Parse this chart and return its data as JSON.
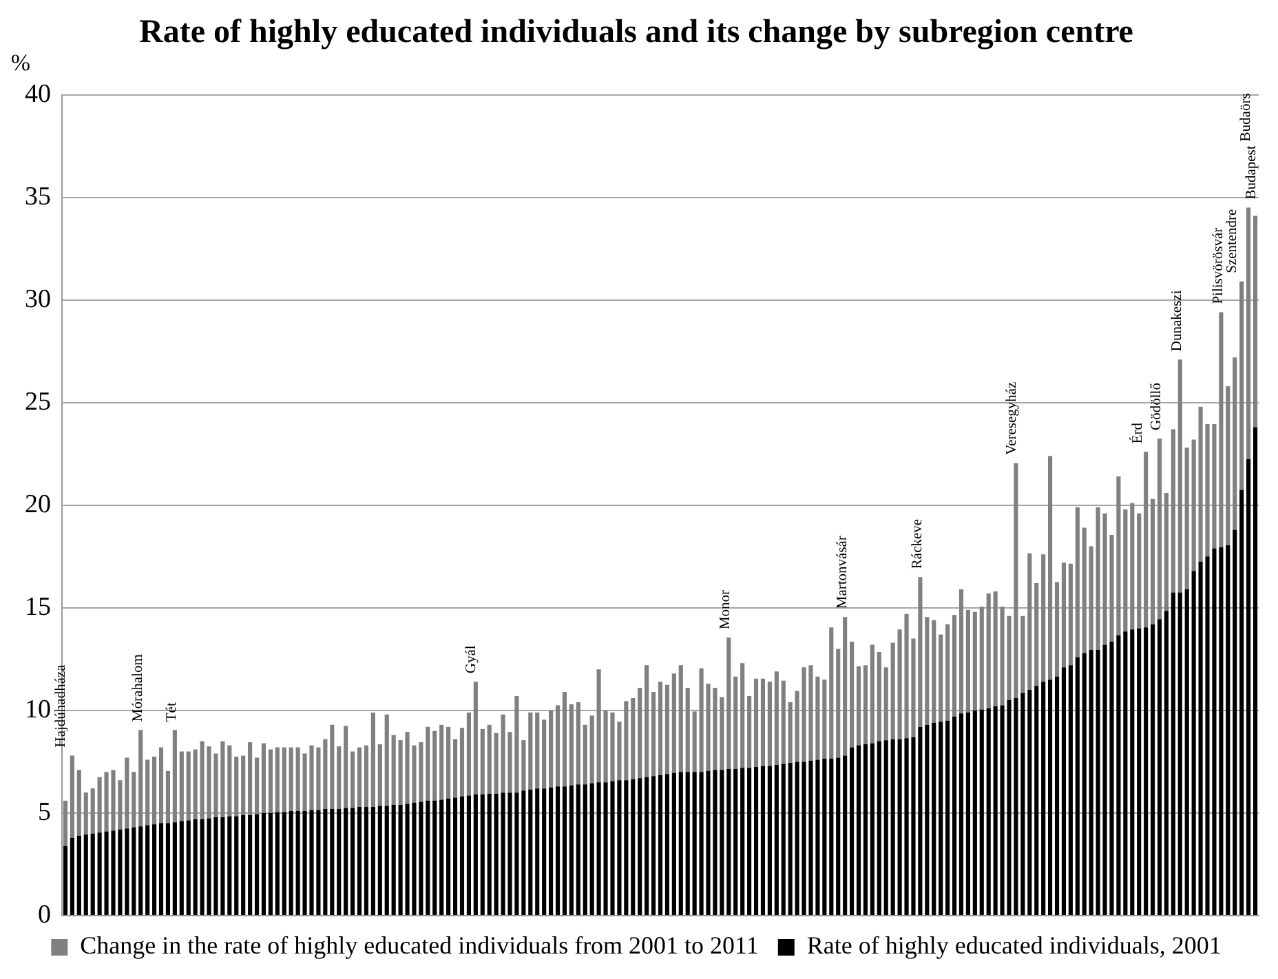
{
  "chart_data": {
    "type": "bar",
    "title": "Rate of highly educated individuals and its change by subregion centre",
    "ylabel": "%",
    "categories": [
      "Hajdúhadháza",
      null,
      null,
      null,
      null,
      null,
      null,
      null,
      null,
      null,
      null,
      "Mórahalom",
      null,
      null,
      null,
      null,
      "Tét",
      null,
      null,
      null,
      null,
      null,
      null,
      null,
      null,
      null,
      null,
      null,
      null,
      null,
      null,
      null,
      null,
      null,
      null,
      null,
      null,
      null,
      null,
      null,
      null,
      null,
      null,
      null,
      null,
      null,
      null,
      null,
      null,
      null,
      null,
      null,
      null,
      null,
      null,
      null,
      null,
      null,
      null,
      null,
      "Gyál",
      null,
      null,
      null,
      null,
      null,
      null,
      null,
      null,
      null,
      null,
      null,
      null,
      null,
      null,
      null,
      null,
      null,
      null,
      null,
      null,
      null,
      null,
      null,
      null,
      null,
      null,
      null,
      null,
      null,
      null,
      null,
      null,
      null,
      null,
      null,
      null,
      "Monor",
      null,
      null,
      null,
      null,
      null,
      null,
      null,
      null,
      null,
      null,
      null,
      null,
      null,
      null,
      null,
      null,
      "Martonvásár",
      null,
      null,
      null,
      null,
      null,
      null,
      null,
      null,
      null,
      null,
      "Ráckeve",
      null,
      null,
      null,
      null,
      null,
      null,
      null,
      null,
      null,
      null,
      null,
      null,
      null,
      "Veresegyház",
      null,
      null,
      null,
      null,
      null,
      null,
      null,
      null,
      null,
      null,
      null,
      null,
      null,
      null,
      null,
      null,
      null,
      "Érd",
      null,
      null,
      "Gödöllő",
      null,
      null,
      "Dunakeszi",
      null,
      null,
      null,
      null,
      null,
      "Pilisvörösvár",
      null,
      "Szentendre",
      null,
      "Budaörs",
      "Budapest"
    ],
    "series": [
      {
        "name": "Rate of highly educated individuals, 2001",
        "color": "#000000",
        "values": [
          3.4,
          3.8,
          3.9,
          3.95,
          4.0,
          4.05,
          4.1,
          4.15,
          4.2,
          4.25,
          4.3,
          4.35,
          4.4,
          4.45,
          4.5,
          4.5,
          4.55,
          4.6,
          4.65,
          4.7,
          4.7,
          4.75,
          4.8,
          4.8,
          4.85,
          4.85,
          4.9,
          4.9,
          4.95,
          5.0,
          5.0,
          5.05,
          5.05,
          5.1,
          5.1,
          5.1,
          5.15,
          5.15,
          5.2,
          5.2,
          5.2,
          5.25,
          5.25,
          5.3,
          5.3,
          5.3,
          5.35,
          5.35,
          5.4,
          5.4,
          5.45,
          5.5,
          5.55,
          5.6,
          5.6,
          5.65,
          5.7,
          5.75,
          5.8,
          5.85,
          5.9,
          5.9,
          5.95,
          5.95,
          6.0,
          6.0,
          6.0,
          6.1,
          6.15,
          6.2,
          6.2,
          6.25,
          6.3,
          6.3,
          6.35,
          6.4,
          6.4,
          6.45,
          6.5,
          6.5,
          6.55,
          6.6,
          6.6,
          6.65,
          6.7,
          6.75,
          6.8,
          6.85,
          6.9,
          6.95,
          7.0,
          7.0,
          7.0,
          7.0,
          7.05,
          7.1,
          7.1,
          7.15,
          7.15,
          7.2,
          7.2,
          7.25,
          7.3,
          7.3,
          7.35,
          7.4,
          7.45,
          7.5,
          7.5,
          7.55,
          7.6,
          7.65,
          7.65,
          7.7,
          7.8,
          8.2,
          8.3,
          8.35,
          8.4,
          8.5,
          8.55,
          8.6,
          8.6,
          8.65,
          8.7,
          9.2,
          9.3,
          9.4,
          9.45,
          9.5,
          9.7,
          9.85,
          9.9,
          10.0,
          10.05,
          10.1,
          10.2,
          10.25,
          10.5,
          10.6,
          10.85,
          11.0,
          11.2,
          11.4,
          11.5,
          11.65,
          12.1,
          12.2,
          12.6,
          12.8,
          12.95,
          12.95,
          13.2,
          13.35,
          13.65,
          13.85,
          13.95,
          14.0,
          14.05,
          14.2,
          14.45,
          14.85,
          15.75,
          15.75,
          15.9,
          16.8,
          17.25,
          17.5,
          17.9,
          17.95,
          18.05,
          18.8,
          20.75,
          22.25,
          23.8
        ]
      },
      {
        "name": "Change in the rate of highly educated individuals from 2001 to 2011",
        "color": "#808080",
        "values": [
          2.2,
          4.0,
          3.2,
          2.05,
          2.2,
          2.7,
          2.9,
          2.95,
          2.4,
          3.45,
          2.7,
          4.7,
          3.2,
          3.3,
          3.7,
          2.55,
          4.5,
          3.4,
          3.35,
          3.4,
          3.8,
          3.5,
          3.1,
          3.7,
          3.45,
          2.9,
          2.9,
          3.55,
          2.75,
          3.4,
          3.1,
          3.15,
          3.15,
          3.1,
          3.1,
          2.8,
          3.15,
          3.05,
          3.4,
          4.1,
          3.05,
          4.0,
          2.75,
          2.9,
          3.0,
          4.6,
          3.0,
          4.45,
          3.4,
          3.15,
          3.5,
          2.8,
          2.9,
          3.6,
          3.4,
          3.65,
          3.5,
          2.85,
          3.35,
          4.05,
          5.5,
          3.2,
          3.35,
          2.95,
          3.8,
          2.95,
          4.7,
          2.45,
          3.75,
          3.7,
          3.35,
          3.75,
          3.95,
          4.6,
          3.95,
          4.0,
          2.9,
          3.3,
          5.5,
          3.5,
          3.35,
          2.85,
          3.85,
          3.95,
          4.4,
          5.45,
          4.1,
          4.55,
          4.35,
          4.85,
          5.2,
          4.1,
          2.95,
          5.05,
          4.25,
          4.0,
          3.55,
          6.4,
          4.5,
          5.1,
          3.5,
          4.3,
          4.25,
          4.1,
          4.55,
          4.05,
          2.95,
          3.45,
          4.6,
          4.65,
          4.05,
          3.85,
          6.4,
          5.3,
          6.75,
          5.15,
          3.85,
          3.85,
          4.8,
          4.35,
          3.55,
          4.7,
          5.35,
          6.05,
          4.8,
          7.3,
          5.25,
          5.0,
          4.25,
          4.7,
          4.95,
          6.05,
          5.0,
          4.8,
          5.0,
          5.6,
          5.6,
          4.8,
          4.1,
          11.45,
          3.75,
          6.65,
          5.0,
          6.2,
          10.9,
          4.6,
          5.1,
          4.95,
          7.3,
          6.1,
          5.05,
          6.95,
          6.4,
          5.2,
          7.75,
          5.95,
          6.15,
          5.6,
          8.55,
          6.1,
          8.8,
          5.75,
          7.95,
          11.35,
          6.9,
          6.4,
          7.55,
          6.45,
          6.05,
          11.45,
          7.75,
          8.4,
          10.15,
          12.25,
          10.3
        ]
      }
    ],
    "stacked": true,
    "ylim": [
      0,
      40
    ],
    "yticks": [
      0,
      5,
      10,
      15,
      20,
      25,
      30,
      35,
      40
    ],
    "grid": "y",
    "legend": "bottom",
    "tick_labels": "y"
  }
}
